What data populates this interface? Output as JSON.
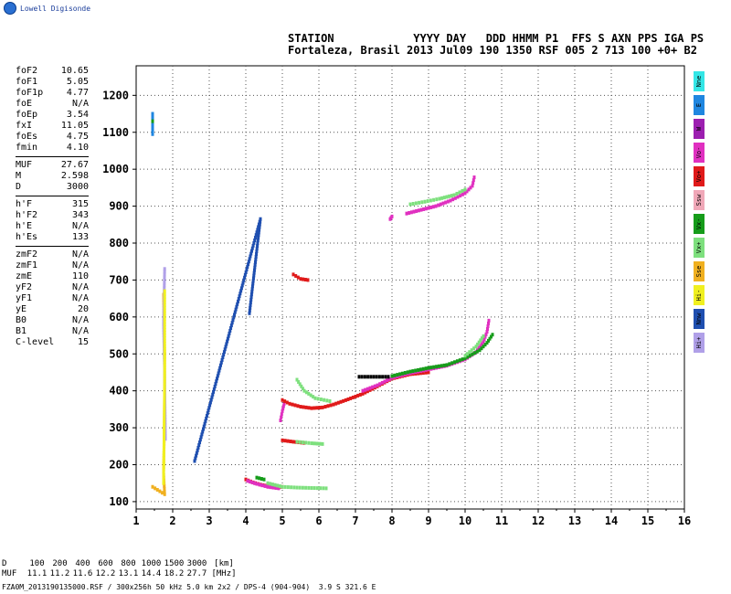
{
  "logo": {
    "text": "Lowell Digisonde",
    "icon": "globe-icon"
  },
  "header": {
    "line1": "STATION            YYYY DAY   DDD HHMM P1  FFS S AXN PPS IGA PS",
    "line2": "Fortaleza, Brasil 2013 Jul09 190 1350 RSF 005 2 713 100 +0+ B2"
  },
  "params": {
    "group1": [
      {
        "name": "foF2",
        "value": "10.65"
      },
      {
        "name": "foF1",
        "value": "5.05"
      },
      {
        "name": "foF1p",
        "value": "4.77"
      },
      {
        "name": "foE",
        "value": "N/A"
      },
      {
        "name": "foEp",
        "value": "3.54"
      },
      {
        "name": "fxI",
        "value": "11.05"
      },
      {
        "name": "foEs",
        "value": "4.75"
      },
      {
        "name": "fmin",
        "value": "4.10"
      }
    ],
    "group2": [
      {
        "name": "MUF",
        "value": "27.67"
      },
      {
        "name": "M",
        "value": "2.598"
      },
      {
        "name": "D",
        "value": "3000"
      }
    ],
    "group3": [
      {
        "name": "h'F",
        "value": "315"
      },
      {
        "name": "h'F2",
        "value": "343"
      },
      {
        "name": "h'E",
        "value": "N/A"
      },
      {
        "name": "h'Es",
        "value": "133"
      }
    ],
    "group4": [
      {
        "name": "zmF2",
        "value": "N/A"
      },
      {
        "name": "zmF1",
        "value": "N/A"
      },
      {
        "name": "zmE",
        "value": "110"
      },
      {
        "name": "yF2",
        "value": "N/A"
      },
      {
        "name": "yF1",
        "value": "N/A"
      },
      {
        "name": "yE",
        "value": "20"
      },
      {
        "name": "B0",
        "value": "N/A"
      },
      {
        "name": "B1",
        "value": "N/A"
      },
      {
        "name": "C-level",
        "value": "15"
      }
    ]
  },
  "legend": [
    {
      "label": "Nne",
      "color": "#33e6e6"
    },
    {
      "label": "E",
      "color": "#1f86e0"
    },
    {
      "label": "W",
      "color": "#9c1fb0"
    },
    {
      "label": "Vo-",
      "color": "#e030c0"
    },
    {
      "label": "Vo+",
      "color": "#e01a1a"
    },
    {
      "label": "Ssw",
      "color": "#f0a8b8"
    },
    {
      "label": "Vx-",
      "color": "#169c1a"
    },
    {
      "label": "Vx+",
      "color": "#7ee07e"
    },
    {
      "label": "Sse",
      "color": "#f0b020"
    },
    {
      "label": "Hi-",
      "color": "#f0f020"
    },
    {
      "label": "Nnw",
      "color": "#1f4fb0"
    },
    {
      "label": "Hi+",
      "color": "#b0a0e8"
    }
  ],
  "distance_table": {
    "d_label": "D",
    "muf_label": "MUF",
    "d_values": [
      "100",
      "200",
      "400",
      "600",
      "800",
      "1000",
      "1500",
      "3000",
      "[km]"
    ],
    "muf_values": [
      "11.1",
      "11.2",
      "11.6",
      "12.2",
      "13.1",
      "14.4",
      "18.2",
      "27.7",
      "[MHz]"
    ]
  },
  "footer": "FZA0M_2013190135000.RSF / 300x256h 50 kHz 5.0 km 2x2 / DPS-4 (904-904)  3.9 S 321.6 E",
  "chart_data": {
    "type": "scatter",
    "xlim": [
      1,
      16
    ],
    "ylim": [
      80,
      1280
    ],
    "xticks": [
      "1",
      "2",
      "3",
      "4",
      "5",
      "6",
      "7",
      "8",
      "9",
      "10",
      "11",
      "12",
      "13",
      "14",
      "15",
      "16"
    ],
    "yticks": [
      "100",
      "200",
      "300",
      "400",
      "500",
      "600",
      "700",
      "800",
      "900",
      "1000",
      "1100",
      "1200"
    ],
    "grid": true,
    "traces": [
      {
        "color": "#e01a1a",
        "points": [
          [
            4.0,
            160
          ],
          [
            4.2,
            152
          ],
          [
            4.4,
            146
          ],
          [
            4.6,
            142
          ],
          [
            4.8,
            140
          ],
          [
            5.0,
            140
          ]
        ]
      },
      {
        "color": "#e030c0",
        "points": [
          [
            4.05,
            156
          ],
          [
            4.3,
            148
          ],
          [
            4.6,
            140
          ],
          [
            4.9,
            136
          ]
        ]
      },
      {
        "color": "#7ee07e",
        "points": [
          [
            4.6,
            150
          ],
          [
            5.0,
            140
          ],
          [
            5.4,
            138
          ],
          [
            5.8,
            137
          ],
          [
            6.2,
            136
          ]
        ]
      },
      {
        "color": "#169c1a",
        "points": [
          [
            4.3,
            165
          ],
          [
            4.5,
            160
          ]
        ]
      },
      {
        "color": "#e01a1a",
        "points": [
          [
            5.0,
            266
          ],
          [
            5.3,
            262
          ],
          [
            5.6,
            259
          ]
        ]
      },
      {
        "color": "#7ee07e",
        "points": [
          [
            5.4,
            262
          ],
          [
            5.8,
            258
          ],
          [
            6.1,
            256
          ]
        ]
      },
      {
        "color": "#e030c0",
        "points": [
          [
            4.95,
            320
          ],
          [
            5.0,
            345
          ],
          [
            5.05,
            365
          ]
        ]
      },
      {
        "color": "#e01a1a",
        "points": [
          [
            5.0,
            375
          ],
          [
            5.2,
            365
          ],
          [
            5.5,
            357
          ],
          [
            5.8,
            353
          ],
          [
            6.1,
            355
          ],
          [
            6.4,
            363
          ],
          [
            6.8,
            377
          ],
          [
            7.2,
            392
          ],
          [
            7.6,
            412
          ],
          [
            8.0,
            433
          ],
          [
            8.5,
            445
          ],
          [
            9.0,
            450
          ]
        ]
      },
      {
        "color": "#e030c0",
        "points": [
          [
            7.2,
            400
          ],
          [
            7.6,
            415
          ],
          [
            8.0,
            435
          ],
          [
            8.5,
            448
          ],
          [
            9.0,
            458
          ],
          [
            9.5,
            468
          ],
          [
            10.0,
            485
          ],
          [
            10.3,
            505
          ],
          [
            10.5,
            532
          ],
          [
            10.6,
            560
          ],
          [
            10.65,
            590
          ]
        ]
      },
      {
        "color": "#169c1a",
        "points": [
          [
            8.0,
            440
          ],
          [
            8.5,
            452
          ],
          [
            9.0,
            462
          ],
          [
            9.5,
            470
          ],
          [
            10.0,
            488
          ],
          [
            10.4,
            510
          ],
          [
            10.6,
            530
          ],
          [
            10.75,
            552
          ]
        ]
      },
      {
        "color": "#7ee07e",
        "points": [
          [
            5.4,
            430
          ],
          [
            5.6,
            400
          ],
          [
            5.9,
            380
          ],
          [
            6.3,
            372
          ]
        ]
      },
      {
        "color": "#7ee07e",
        "points": [
          [
            10.0,
            495
          ],
          [
            10.3,
            520
          ],
          [
            10.5,
            548
          ]
        ]
      },
      {
        "color": "#000000",
        "points": [
          [
            7.1,
            438
          ],
          [
            7.5,
            438
          ],
          [
            7.9,
            438
          ]
        ]
      },
      {
        "color": "#e030c0",
        "points": [
          [
            8.4,
            880
          ],
          [
            8.8,
            890
          ],
          [
            9.2,
            900
          ],
          [
            9.6,
            915
          ],
          [
            10.0,
            935
          ],
          [
            10.2,
            955
          ],
          [
            10.25,
            978
          ]
        ]
      },
      {
        "color": "#7ee07e",
        "points": [
          [
            8.5,
            905
          ],
          [
            8.9,
            912
          ],
          [
            9.3,
            920
          ],
          [
            9.7,
            930
          ],
          [
            10.0,
            945
          ]
        ]
      },
      {
        "color": "#e030c0",
        "points": [
          [
            7.95,
            865
          ],
          [
            8.0,
            872
          ]
        ]
      },
      {
        "color": "#e01a1a",
        "points": [
          [
            5.3,
            715
          ],
          [
            5.5,
            703
          ],
          [
            5.7,
            700
          ]
        ]
      },
      {
        "color": "#1f86e0",
        "points": [
          [
            1.45,
            1095
          ],
          [
            1.45,
            1120
          ],
          [
            1.45,
            1150
          ]
        ]
      },
      {
        "color": "#169c1a",
        "points": [
          [
            1.45,
            1130
          ]
        ]
      },
      {
        "color": "#f0b020",
        "points": [
          [
            1.75,
            660
          ],
          [
            1.78,
            500
          ],
          [
            1.77,
            280
          ],
          [
            1.75,
            180
          ],
          [
            1.78,
            120
          ],
          [
            1.45,
            140
          ]
        ]
      },
      {
        "color": "#b0a0e8",
        "points": [
          [
            1.78,
            730
          ],
          [
            1.75,
            580
          ],
          [
            1.78,
            440
          ],
          [
            1.8,
            270
          ]
        ]
      },
      {
        "color": "#f0f020",
        "points": [
          [
            1.78,
            670
          ],
          [
            1.78,
            430
          ],
          [
            1.75,
            150
          ]
        ]
      },
      {
        "color": "#1f4fb0",
        "points": [
          [
            2.6,
            210
          ],
          [
            4.4,
            865
          ],
          [
            4.1,
            610
          ]
        ]
      }
    ]
  }
}
